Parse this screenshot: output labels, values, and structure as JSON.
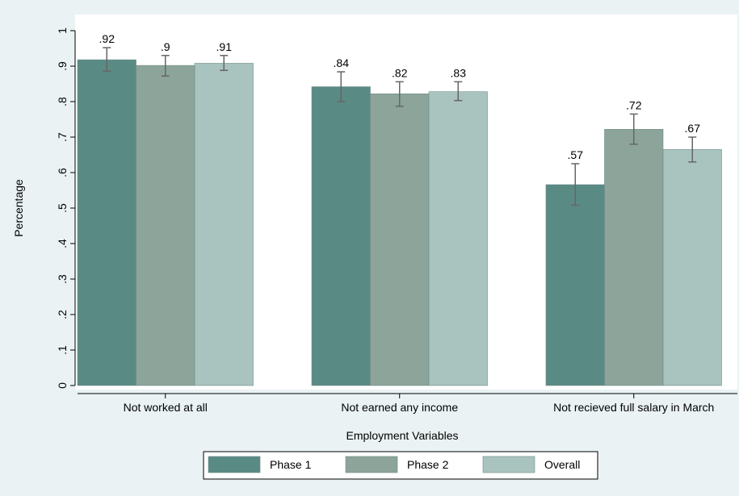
{
  "chart_data": {
    "type": "bar",
    "ylabel": "Percentage",
    "xlabel": "Employment Variables",
    "ylim": [
      0,
      1
    ],
    "yticks": [
      "0",
      ".1",
      ".2",
      ".3",
      ".4",
      ".5",
      ".6",
      ".7",
      ".8",
      ".9",
      "1"
    ],
    "categories": [
      "Not worked at all",
      "Not earned any income",
      "Not recieved full salary in March"
    ],
    "series": [
      {
        "name": "Phase 1",
        "color": "#5a8a84",
        "values": [
          0.918,
          0.842,
          0.566
        ],
        "labels": [
          ".92",
          ".84",
          ".57"
        ],
        "ci_low": [
          0.886,
          0.8,
          0.508
        ],
        "ci_high": [
          0.952,
          0.884,
          0.625
        ]
      },
      {
        "name": "Phase 2",
        "color": "#8ca49a",
        "values": [
          0.902,
          0.822,
          0.722
        ],
        "labels": [
          ".9",
          ".82",
          ".72"
        ],
        "ci_low": [
          0.872,
          0.787,
          0.68
        ],
        "ci_high": [
          0.93,
          0.856,
          0.765
        ]
      },
      {
        "name": "Overall",
        "color": "#a9c3be",
        "values": [
          0.908,
          0.828,
          0.665
        ],
        "labels": [
          ".91",
          ".83",
          ".67"
        ],
        "ci_low": [
          0.888,
          0.803,
          0.63
        ],
        "ci_high": [
          0.93,
          0.856,
          0.7
        ]
      }
    ],
    "legend_position": "bottom",
    "grid": false
  }
}
